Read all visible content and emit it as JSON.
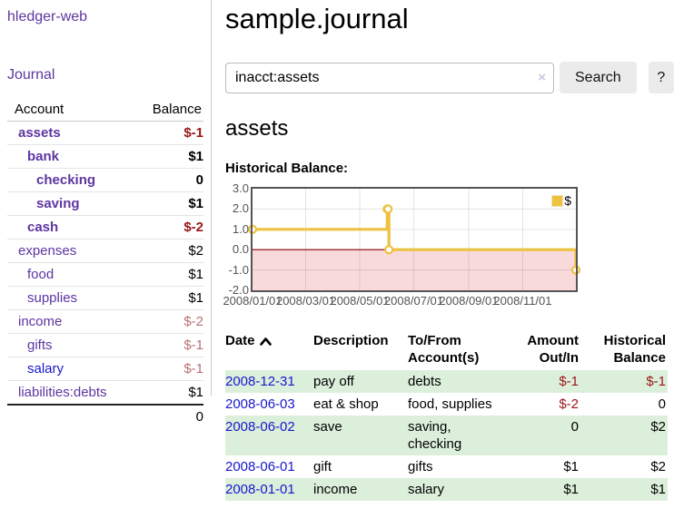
{
  "colors": {
    "link_purple": "#5e35a1",
    "link_blue": "#1717cf",
    "negative_strong": "#9a1616",
    "negative_soft": "#b87272",
    "row_stripe_green": "#dcefdb",
    "chart_line_yellow": "#edc240",
    "negative_region_pink": "#f9dada",
    "zero_line_red": "#7f0000"
  },
  "sidebar": {
    "brand": "hledger-web",
    "nav": {
      "journal": "Journal"
    },
    "accounts_table": {
      "header": {
        "account": "Account",
        "balance": "Balance"
      },
      "rows": [
        {
          "name": "assets",
          "indent": 1,
          "current": true,
          "balance": "$-1",
          "neg": "strong"
        },
        {
          "name": "bank",
          "indent": 2,
          "current": true,
          "balance": "$1",
          "neg": null
        },
        {
          "name": "checking",
          "indent": 3,
          "current": true,
          "balance": "0",
          "neg": null
        },
        {
          "name": "saving",
          "indent": 3,
          "current": true,
          "balance": "$1",
          "neg": null
        },
        {
          "name": "cash",
          "indent": 2,
          "current": true,
          "balance": "$-2",
          "neg": "strong"
        },
        {
          "name": "expenses",
          "indent": 1,
          "current": false,
          "balance": "$2",
          "neg": null
        },
        {
          "name": "food",
          "indent": 2,
          "current": false,
          "balance": "$1",
          "neg": null
        },
        {
          "name": "supplies",
          "indent": 2,
          "current": false,
          "balance": "$1",
          "neg": null
        },
        {
          "name": "income",
          "indent": 1,
          "current": false,
          "balance": "$-2",
          "neg": "soft"
        },
        {
          "name": "gifts",
          "indent": 2,
          "current": false,
          "balance": "$-1",
          "neg": "soft"
        },
        {
          "name": "salary",
          "indent": 2,
          "current": false,
          "balance": "$-1",
          "neg": "soft",
          "link_color": "blue"
        },
        {
          "name": "liabilities:debts",
          "indent": 1,
          "current": false,
          "balance": "$1",
          "neg": null
        }
      ],
      "total": "0"
    }
  },
  "main": {
    "title": "sample.journal",
    "search": {
      "query": "inacct:assets",
      "clear_icon": "×",
      "search_button": "Search",
      "help_button": "?"
    },
    "account_heading": "assets",
    "chart_title": "Historical Balance:"
  },
  "chart_data": {
    "type": "line",
    "interpolation": "step",
    "title": "Historical Balance:",
    "x_range": [
      "2008-01-01",
      "2008-12-31"
    ],
    "ylim": [
      -2,
      3
    ],
    "ytick_labels": [
      "3.0",
      "2.0",
      "1.0",
      "0.0",
      "-1.0",
      "-2.0"
    ],
    "xtick_labels": [
      "2008/01/01",
      "2008/03/01",
      "2008/05/01",
      "2008/07/01",
      "2008/09/01",
      "2008/11/01"
    ],
    "grid": true,
    "legend": {
      "label": "$",
      "position": "top-right"
    },
    "negative_region": {
      "fill": "#f9dada",
      "zero_line_color": "#7f0000"
    },
    "series": [
      {
        "name": "$",
        "color": "#edc240",
        "points": [
          {
            "x": "2008-01-01",
            "y": 1
          },
          {
            "x": "2008-06-01",
            "y": 2
          },
          {
            "x": "2008-06-02",
            "y": 2
          },
          {
            "x": "2008-06-03",
            "y": 0
          },
          {
            "x": "2008-12-31",
            "y": -1
          }
        ]
      }
    ]
  },
  "register": {
    "columns": {
      "date": "Date",
      "description": "Description",
      "accounts": "To/From Account(s)",
      "amount": "Amount Out/In",
      "balance": "Historical Balance"
    },
    "rows": [
      {
        "date": "2008-12-31",
        "description": "pay off",
        "accounts": "debts",
        "amount": "$-1",
        "amount_neg": true,
        "balance": "$-1",
        "balance_neg": true
      },
      {
        "date": "2008-06-03",
        "description": "eat & shop",
        "accounts": "food, supplies",
        "amount": "$-2",
        "amount_neg": true,
        "balance": "0",
        "balance_neg": false
      },
      {
        "date": "2008-06-02",
        "description": "save",
        "accounts": "saving, checking",
        "amount": "0",
        "amount_neg": false,
        "balance": "$2",
        "balance_neg": false
      },
      {
        "date": "2008-06-01",
        "description": "gift",
        "accounts": "gifts",
        "amount": "$1",
        "amount_neg": false,
        "balance": "$2",
        "balance_neg": false
      },
      {
        "date": "2008-01-01",
        "description": "income",
        "accounts": "salary",
        "amount": "$1",
        "amount_neg": false,
        "balance": "$1",
        "balance_neg": false
      }
    ]
  }
}
